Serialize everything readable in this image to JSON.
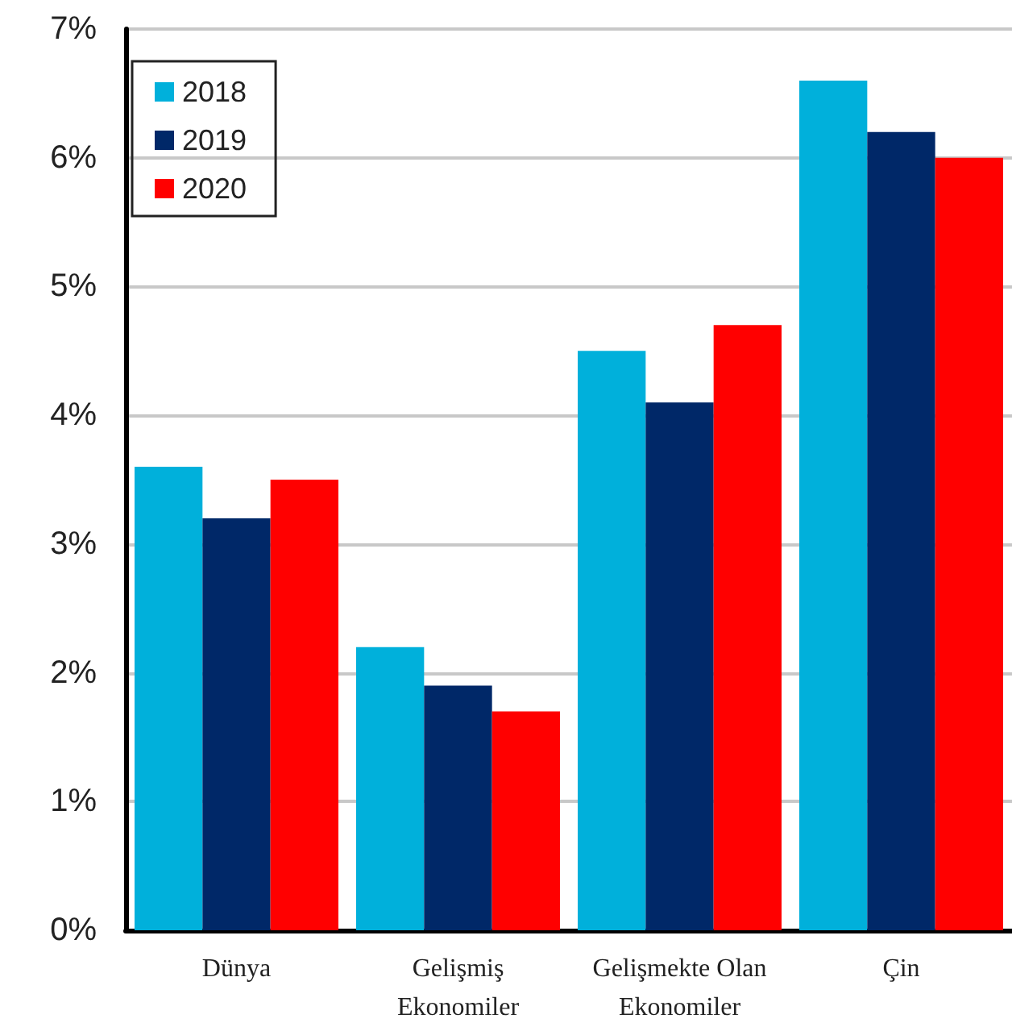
{
  "chart_data": {
    "type": "bar",
    "categories": [
      "Dünya",
      "Gelişmiş\nEkonomiler",
      "Gelişmekte Olan\nEkonomiler",
      "Çin"
    ],
    "series": [
      {
        "name": "2018",
        "color": "#00b0db",
        "values": [
          3.6,
          2.2,
          4.5,
          6.6
        ]
      },
      {
        "name": "2019",
        "color": "#002868",
        "values": [
          3.2,
          1.9,
          4.1,
          6.2
        ]
      },
      {
        "name": "2020",
        "color": "#ff0000",
        "values": [
          3.5,
          1.7,
          4.7,
          6.0
        ]
      }
    ],
    "ylim": [
      0,
      7
    ],
    "yticks": [
      {
        "value": 0,
        "label": "0%"
      },
      {
        "value": 1,
        "label": "1%"
      },
      {
        "value": 2,
        "label": "2%"
      },
      {
        "value": 3,
        "label": "3%"
      },
      {
        "value": 4,
        "label": "4%"
      },
      {
        "value": 5,
        "label": "5%"
      },
      {
        "value": 6,
        "label": "6%"
      },
      {
        "value": 7,
        "label": "7%"
      }
    ],
    "grid": "y",
    "legend": "top left"
  }
}
